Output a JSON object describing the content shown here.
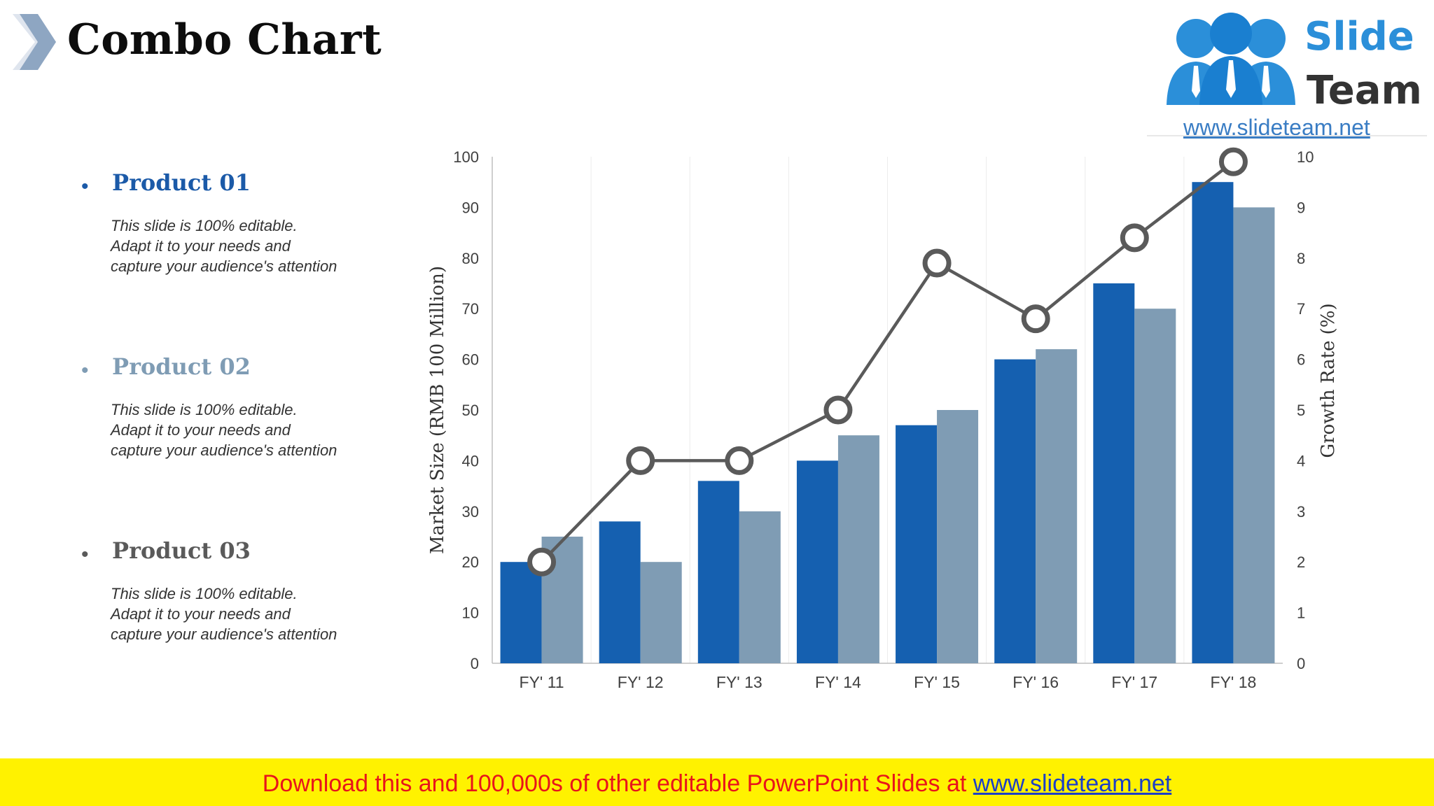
{
  "header": {
    "title": "Combo Chart"
  },
  "logo": {
    "line1": "Slide",
    "line2": "Team",
    "url": "www.slideteam.net"
  },
  "products": [
    {
      "name": "Product 01",
      "desc_lines": [
        "This slide is 100% editable.",
        "Adapt it to your needs and",
        "capture your audience's attention"
      ],
      "color": "#1b5aa8"
    },
    {
      "name": "Product 02",
      "desc_lines": [
        "This slide is 100% editable.",
        "Adapt it to your needs and",
        "capture your audience's attention"
      ],
      "color": "#7f9cb4"
    },
    {
      "name": "Product 03",
      "desc_lines": [
        "This slide is 100% editable.",
        "Adapt it to your needs and",
        "capture your audience's attention"
      ],
      "color": "#5a5a5a"
    }
  ],
  "chart_data": {
    "type": "bar",
    "categories": [
      "FY' 11",
      "FY' 12",
      "FY' 13",
      "FY' 14",
      "FY' 15",
      "FY' 16",
      "FY' 17",
      "FY' 18"
    ],
    "series": [
      {
        "type": "bar",
        "axis": "left",
        "values": [
          20,
          28,
          36,
          40,
          47,
          60,
          75,
          95
        ],
        "color": "#1560b0"
      },
      {
        "type": "bar",
        "axis": "left",
        "values": [
          25,
          20,
          30,
          45,
          50,
          62,
          70,
          90
        ],
        "color": "#7f9cb4"
      },
      {
        "type": "line",
        "axis": "right",
        "values": [
          2,
          4,
          4,
          5,
          7.9,
          6.8,
          8.4,
          9.9
        ],
        "color": "#5a5a5a"
      }
    ],
    "ylabel": "Market Size (RMB 100 Million)",
    "y2label": "Growth Rate (%)",
    "ylim": [
      0,
      100
    ],
    "y2lim": [
      0,
      10
    ],
    "yticks": [
      "0",
      "10",
      "20",
      "30",
      "40",
      "50",
      "60",
      "70",
      "80",
      "90",
      "100"
    ],
    "y2ticks": [
      "0",
      "1",
      "2",
      "3",
      "4",
      "5",
      "6",
      "7",
      "8",
      "9",
      "10"
    ],
    "grid": "vertical",
    "legend": "none"
  },
  "banner": {
    "text": "Download this and 100,000s of other editable PowerPoint Slides at ",
    "link": "www.slideteam.net"
  }
}
